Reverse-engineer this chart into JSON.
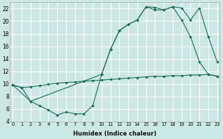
{
  "xlabel": "Humidex (Indice chaleur)",
  "bg_color": "#cce8e4",
  "line_color": "#1a6b5a",
  "grid_color": "#ffffff",
  "line1_x": [
    0,
    1,
    2,
    3,
    4,
    5,
    6,
    7,
    8,
    9,
    10,
    11,
    12,
    13,
    14,
    15,
    16,
    17,
    18,
    19,
    20,
    21,
    22,
    23
  ],
  "line1_y": [
    9.8,
    9.4,
    9.5,
    9.7,
    9.9,
    10.1,
    10.2,
    10.3,
    10.4,
    10.5,
    10.6,
    10.7,
    10.8,
    10.9,
    11.0,
    11.1,
    11.2,
    11.2,
    11.3,
    11.3,
    11.4,
    11.4,
    11.5,
    11.2
  ],
  "line2_x": [
    0,
    1,
    2,
    3,
    4,
    5,
    6,
    7,
    8,
    9,
    10,
    11,
    12,
    13,
    14,
    15,
    16,
    17,
    18,
    19,
    20,
    21,
    22,
    23
  ],
  "line2_y": [
    9.8,
    9.4,
    7.2,
    6.5,
    5.8,
    5.0,
    5.5,
    5.2,
    5.2,
    6.5,
    11.5,
    15.5,
    18.5,
    19.5,
    20.2,
    22.3,
    21.8,
    21.8,
    22.3,
    20.2,
    17.5,
    13.5,
    11.5,
    11.2
  ],
  "line3_x": [
    0,
    2,
    10,
    11,
    12,
    13,
    14,
    15,
    16,
    17,
    18,
    19,
    20,
    21,
    22,
    23
  ],
  "line3_y": [
    9.8,
    7.2,
    11.5,
    15.5,
    18.5,
    19.5,
    20.2,
    22.3,
    22.2,
    21.8,
    22.3,
    22.1,
    20.2,
    22.1,
    17.5,
    13.5
  ],
  "xlim": [
    0,
    23
  ],
  "ylim": [
    4,
    23
  ],
  "yticks": [
    4,
    6,
    8,
    10,
    12,
    14,
    16,
    18,
    20,
    22
  ],
  "xticks": [
    0,
    1,
    2,
    3,
    4,
    5,
    6,
    7,
    8,
    9,
    10,
    11,
    12,
    13,
    14,
    15,
    16,
    17,
    18,
    19,
    20,
    21,
    22,
    23
  ]
}
